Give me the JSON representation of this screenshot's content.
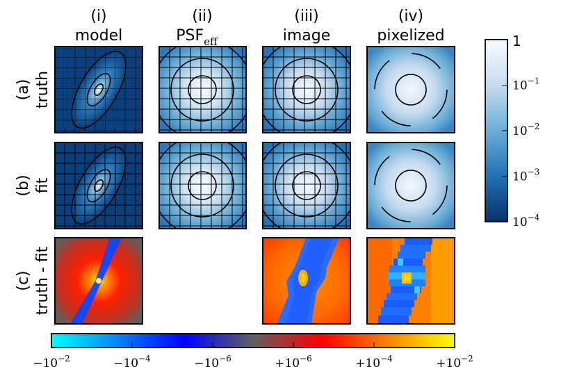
{
  "columns": [
    {
      "num": "(i)",
      "label": "model"
    },
    {
      "num": "(ii)",
      "label": "PSF",
      "sub": "eff"
    },
    {
      "num": "(iii)",
      "label": "image"
    },
    {
      "num": "(iv)",
      "label": "pixelized"
    }
  ],
  "rows": [
    {
      "id": "a",
      "num": "(a)",
      "label": "truth"
    },
    {
      "id": "b",
      "num": "(b)",
      "label": "fit"
    },
    {
      "id": "c",
      "num": "(c)",
      "label": "truth - fit"
    }
  ],
  "colorbar_log": {
    "top_label": "1",
    "ticks": [
      {
        "base": "10",
        "exp": "−1",
        "value": 0.1
      },
      {
        "base": "10",
        "exp": "−2",
        "value": 0.01
      },
      {
        "base": "10",
        "exp": "−3",
        "value": 0.001
      },
      {
        "base": "10",
        "exp": "−4",
        "value": 0.0001
      }
    ],
    "colors": [
      "#08306b",
      "#2171b5",
      "#6baed6",
      "#c6dbef",
      "#f7fbff"
    ]
  },
  "colorbar_diverging": {
    "ticks": [
      {
        "text": "−10",
        "exp": "−2"
      },
      {
        "text": "−10",
        "exp": "−4"
      },
      {
        "text": "−10",
        "exp": "−6"
      },
      {
        "text": "+10",
        "exp": "−6"
      },
      {
        "text": "+10",
        "exp": "−4"
      },
      {
        "text": "+10",
        "exp": "−2"
      }
    ],
    "colors": [
      "#00ffff",
      "#0080ff",
      "#0000ff",
      "#606060",
      "#ff0000",
      "#ff8000",
      "#ffff00"
    ]
  },
  "empty_panel": "c-ii"
}
